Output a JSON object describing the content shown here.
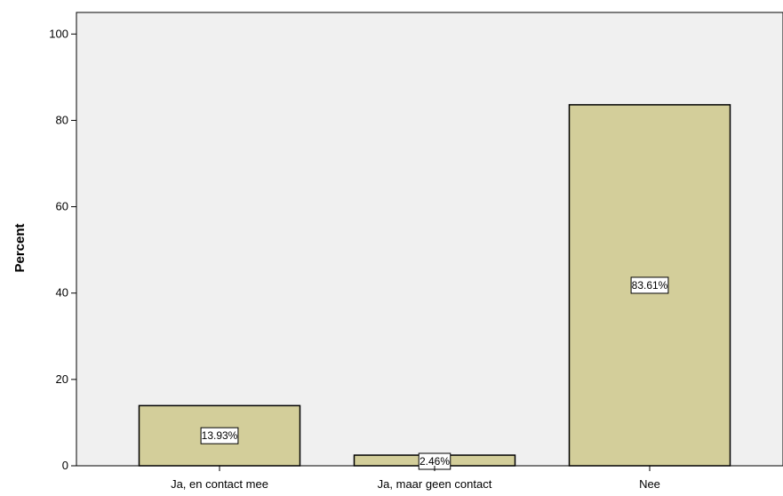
{
  "chart_data": {
    "type": "bar",
    "categories": [
      "Ja,  en contact mee",
      "Ja, maar geen contact",
      "Nee"
    ],
    "values": [
      13.93,
      2.46,
      83.61
    ],
    "data_labels": [
      "13.93%",
      "2.46%",
      "83.61%"
    ],
    "ylabel": "Percent",
    "xlabel": "",
    "ylim": [
      0,
      105
    ],
    "yticks": [
      0,
      20,
      40,
      60,
      80,
      100
    ],
    "ytick_labels": [
      "0",
      "20",
      "40",
      "60",
      "80",
      "100"
    ],
    "grid": false,
    "colors": {
      "plot_background": "#f0f0f0",
      "bar_fill": "#d3ce9a",
      "bar_stroke": "#000000",
      "label_box_fill": "#ffffff"
    }
  }
}
